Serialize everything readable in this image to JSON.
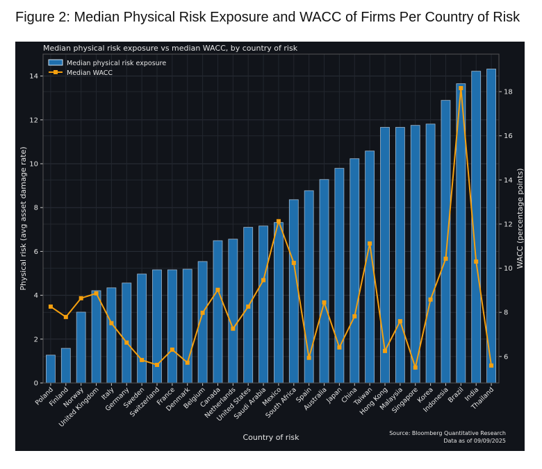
{
  "figure_title": "Figure 2: Median Physical Risk Exposure and WACC of Firms Per Country of Risk",
  "chart_data": {
    "type": "bar+line",
    "title": "Median physical risk exposure vs median WACC, by country of risk",
    "xlabel": "Country of risk",
    "ylabel": "Physical risk (avg asset damage rate)",
    "y2label": "WACC (percentage points)",
    "ylim": [
      0,
      15
    ],
    "y2lim": [
      4.8,
      19.7
    ],
    "yticks": [
      0,
      2,
      4,
      6,
      8,
      10,
      12,
      14
    ],
    "y2ticks": [
      6,
      8,
      10,
      12,
      14,
      16,
      18
    ],
    "grid": true,
    "legend_position": "top-left",
    "categories": [
      "Poland",
      "Finland",
      "Norway",
      "United Kingdom",
      "Italy",
      "Germany",
      "Sweden",
      "Switzerland",
      "France",
      "Denmark",
      "Belgium",
      "Canada",
      "Netherlands",
      "United States",
      "Saudi Arabia",
      "Mexico",
      "South Africa",
      "Spain",
      "Australia",
      "Japan",
      "China",
      "Taiwan",
      "Hong Kong",
      "Malaysia",
      "Singapore",
      "Korea",
      "Indonesia",
      "Brazil",
      "India",
      "Thailand"
    ],
    "series": [
      {
        "name": "Median physical risk exposure",
        "type": "bar",
        "axis": "left",
        "color": "#1f6fad",
        "values": [
          1.27,
          1.58,
          3.23,
          4.21,
          4.34,
          4.56,
          4.97,
          5.16,
          5.16,
          5.19,
          5.54,
          6.49,
          6.56,
          7.1,
          7.16,
          7.32,
          8.36,
          8.77,
          9.28,
          9.79,
          10.23,
          10.58,
          11.66,
          11.66,
          11.75,
          11.81,
          12.89,
          13.65,
          14.22,
          14.32
        ]
      },
      {
        "name": "Median WACC",
        "type": "line",
        "axis": "right",
        "color": "#f5a00f",
        "values": [
          8.26,
          7.79,
          8.64,
          8.86,
          7.51,
          6.63,
          5.84,
          5.62,
          6.31,
          5.72,
          7.98,
          9.02,
          7.26,
          8.26,
          9.46,
          12.13,
          10.24,
          5.94,
          8.45,
          6.41,
          7.82,
          11.12,
          6.25,
          7.6,
          5.5,
          8.58,
          10.43,
          18.16,
          10.3,
          5.59
        ]
      }
    ],
    "annotations": [
      "Source: Bloomberg Quantitative Research",
      "Data as of 09/09/2025"
    ]
  }
}
